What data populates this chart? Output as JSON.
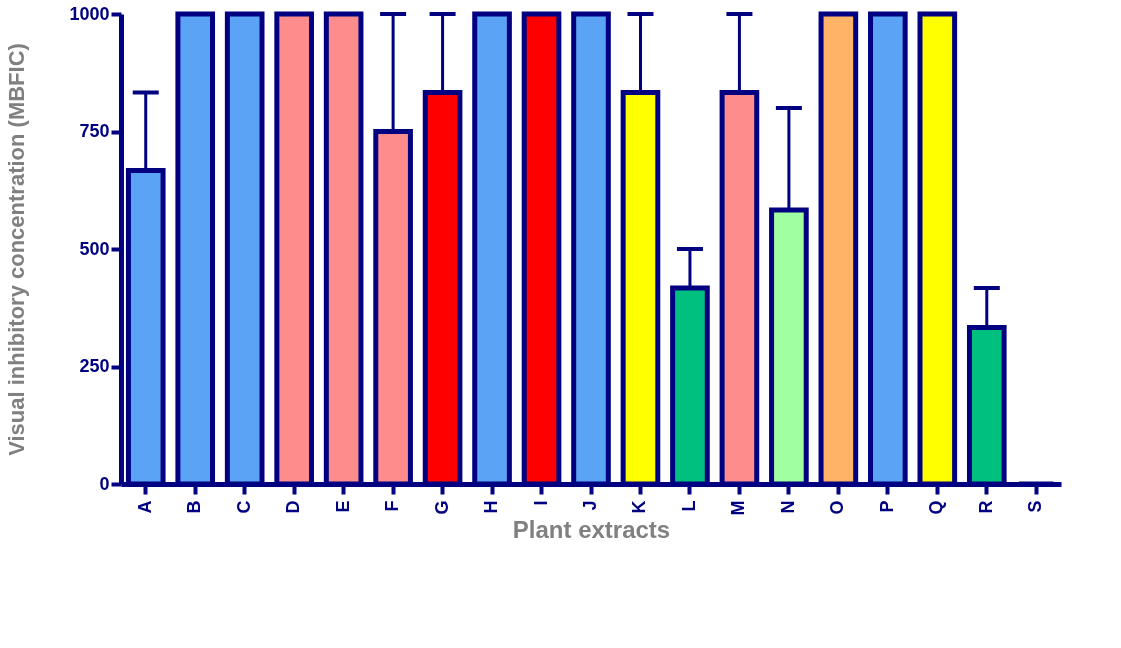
{
  "chart_data": {
    "type": "bar",
    "xlabel": "Plant extracts",
    "ylabel": "Visual inhibitory concentration (MBFIC)",
    "categories": [
      "A",
      "B",
      "C",
      "D",
      "E",
      "F",
      "G",
      "H",
      "I",
      "J",
      "K",
      "L",
      "M",
      "N",
      "O",
      "P",
      "Q",
      "R",
      "S"
    ],
    "values": [
      667,
      1000,
      1000,
      1000,
      1000,
      750,
      833,
      1000,
      1000,
      1000,
      833,
      417,
      833,
      583,
      1000,
      1000,
      1000,
      333,
      0
    ],
    "errors": [
      [
        667,
        833
      ],
      null,
      null,
      null,
      null,
      [
        750,
        1000
      ],
      [
        833,
        1000
      ],
      null,
      null,
      null,
      [
        833,
        1000
      ],
      [
        417,
        500
      ],
      [
        833,
        1000
      ],
      [
        583,
        800
      ],
      null,
      null,
      null,
      [
        333,
        417
      ],
      null
    ],
    "colors": [
      "#5ba3f5",
      "#5ba3f5",
      "#5ba3f5",
      "#ff8c8c",
      "#ff8c8c",
      "#ff8c8c",
      "#ff0000",
      "#5ba3f5",
      "#ff0000",
      "#5ba3f5",
      "#ffff00",
      "#00c080",
      "#ff8c8c",
      "#a0ffa0",
      "#ffb366",
      "#5ba3f5",
      "#ffff00",
      "#00c080",
      "#ffffff"
    ],
    "ylim": [
      0,
      1000
    ],
    "yticks": [
      0,
      250,
      500,
      750,
      1000
    ],
    "grid": false,
    "legend": false
  }
}
